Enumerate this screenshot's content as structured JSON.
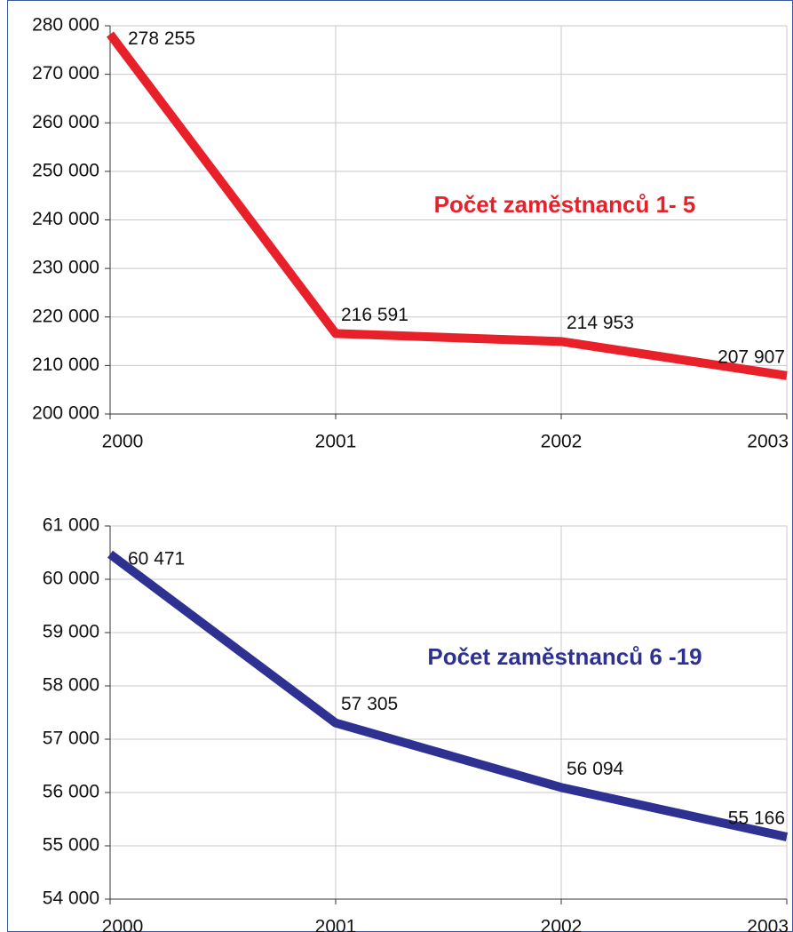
{
  "chart_data": [
    {
      "type": "line",
      "annotation": "Počet zaměstnanců 1- 5",
      "x": [
        2000,
        2001,
        2002,
        2003
      ],
      "xlim": [
        2000,
        2003
      ],
      "xticks": [
        2000,
        2001,
        2002,
        2003
      ],
      "ylim": [
        200000,
        280000
      ],
      "yticks": [
        {
          "value": 200000,
          "label": "200 000"
        },
        {
          "value": 210000,
          "label": "210 000"
        },
        {
          "value": 220000,
          "label": "220 000"
        },
        {
          "value": 230000,
          "label": "230 000"
        },
        {
          "value": 240000,
          "label": "240 000"
        },
        {
          "value": 250000,
          "label": "250 000"
        },
        {
          "value": 260000,
          "label": "260 000"
        },
        {
          "value": 270000,
          "label": "270 000"
        },
        {
          "value": 280000,
          "label": "280 000"
        }
      ],
      "grid": true,
      "series": [
        {
          "color": "#e8202a",
          "values": [
            278255,
            216591,
            214953,
            207907
          ],
          "value_labels": [
            "278 255",
            "216 591",
            "214 953",
            "207 907"
          ]
        }
      ]
    },
    {
      "type": "line",
      "annotation": "Počet zaměstnanců 6 -19",
      "x": [
        2000,
        2001,
        2002,
        2003
      ],
      "xlim": [
        2000,
        2003
      ],
      "xticks": [
        2000,
        2001,
        2002,
        2003
      ],
      "ylim": [
        54000,
        61000
      ],
      "yticks": [
        {
          "value": 54000,
          "label": "54 000"
        },
        {
          "value": 55000,
          "label": "55 000"
        },
        {
          "value": 56000,
          "label": "56 000"
        },
        {
          "value": 57000,
          "label": "57 000"
        },
        {
          "value": 58000,
          "label": "58 000"
        },
        {
          "value": 59000,
          "label": "59 000"
        },
        {
          "value": 60000,
          "label": "60 000"
        },
        {
          "value": 61000,
          "label": "61 000"
        }
      ],
      "grid": true,
      "series": [
        {
          "color": "#2e3192",
          "values": [
            60471,
            57305,
            56094,
            55166
          ],
          "value_labels": [
            "60 471",
            "57 305",
            "56 094",
            "55 166"
          ]
        }
      ]
    }
  ]
}
